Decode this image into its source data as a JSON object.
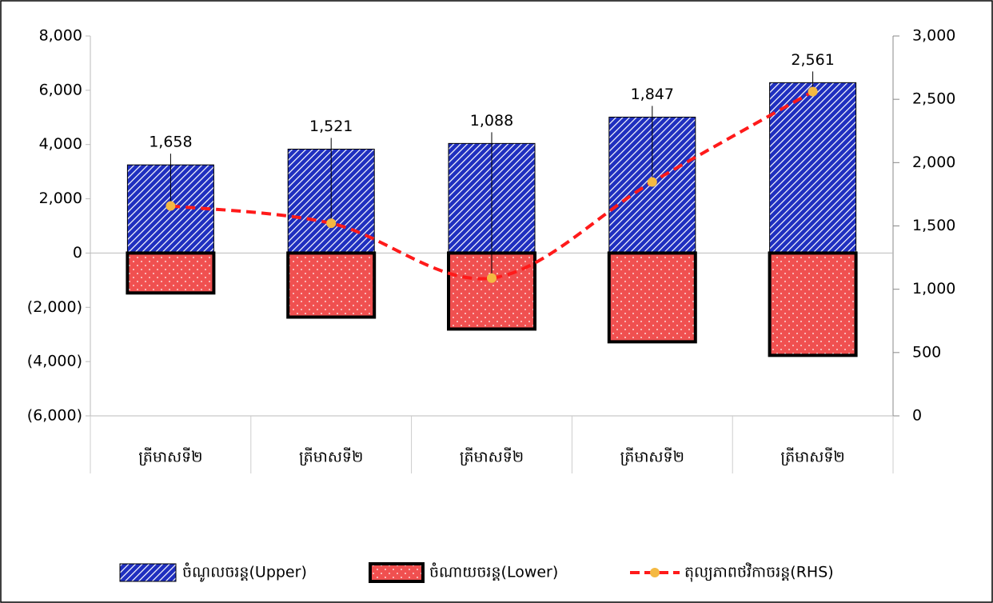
{
  "chart_data": {
    "type": "bar",
    "categories": [
      "ត្រីមាសទី២",
      "ត្រីមាសទី២",
      "ត្រីមាសទី២",
      "ត្រីមាសទី២",
      "ត្រីមាសទី២"
    ],
    "series": [
      {
        "name": "ចំណូលចរន្ត(Upper)",
        "type": "bar",
        "color": "#1f2fbf",
        "values": [
          3250,
          3830,
          4040,
          5010,
          6280
        ]
      },
      {
        "name": "ចំណាយចរន្ត(Lower)",
        "type": "bar",
        "color": "#f05050",
        "values": [
          -1470,
          -2360,
          -2800,
          -3270,
          -3770
        ]
      },
      {
        "name": "តុល្យភាពថវិកាចរន្ត(RHS)",
        "type": "line",
        "axis": "y2",
        "color": "#ff1a1a",
        "marker_color": "#f4b942",
        "values": [
          1658,
          1521,
          1088,
          1847,
          2561
        ],
        "value_labels": [
          "1,658",
          "1,521",
          "1,088",
          "1,847",
          "2,561"
        ]
      }
    ],
    "ylim": [
      -6000,
      8000
    ],
    "yticks": [
      {
        "value": -6000,
        "label": "(6,000)"
      },
      {
        "value": -4000,
        "label": "(4,000)"
      },
      {
        "value": -2000,
        "label": "(2,000)"
      },
      0,
      {
        "value": 2000,
        "label": "2,000"
      },
      {
        "value": 4000,
        "label": "4,000"
      },
      {
        "value": 6000,
        "label": "6,000"
      },
      {
        "value": 8000,
        "label": "8,000"
      }
    ],
    "negative_tick_color": "#ff0000",
    "y2lim": [
      0,
      3000
    ],
    "y2ticks": [
      0,
      500,
      {
        "value": 1000,
        "label": "1,000"
      },
      {
        "value": 1500,
        "label": "1,500"
      },
      {
        "value": 2000,
        "label": "2,000"
      },
      {
        "value": 2500,
        "label": "2,500"
      },
      {
        "value": 3000,
        "label": "3,000"
      }
    ],
    "legend": "bottom"
  }
}
